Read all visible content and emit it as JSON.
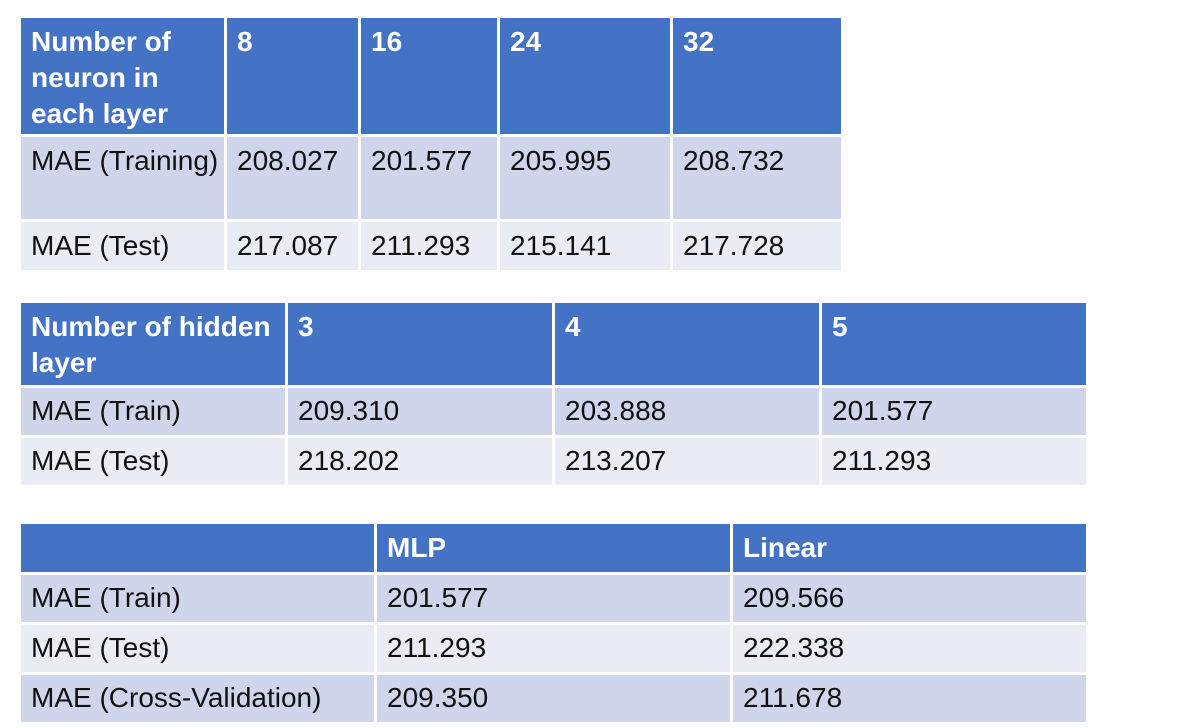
{
  "table1": {
    "header": [
      "Number of neuron in each layer",
      "8",
      "16",
      "24",
      "32"
    ],
    "rows": [
      [
        "MAE (Training)",
        "208.027",
        "201.577",
        "205.995",
        "208.732"
      ],
      [
        "MAE (Test)",
        "217.087",
        "211.293",
        "215.141",
        "217.728"
      ]
    ]
  },
  "table2": {
    "header": [
      "Number of hidden layer",
      "3",
      "4",
      "5"
    ],
    "rows": [
      [
        "MAE (Train)",
        "209.310",
        "203.888",
        "201.577"
      ],
      [
        "MAE (Test)",
        "218.202",
        "213.207",
        "211.293"
      ]
    ]
  },
  "table3": {
    "header": [
      "",
      "MLP",
      "Linear"
    ],
    "rows": [
      [
        "MAE (Train)",
        "201.577",
        "209.566"
      ],
      [
        "MAE (Test)",
        "211.293",
        "222.338"
      ],
      [
        "MAE (Cross-Validation)",
        "209.350",
        "211.678"
      ]
    ]
  }
}
